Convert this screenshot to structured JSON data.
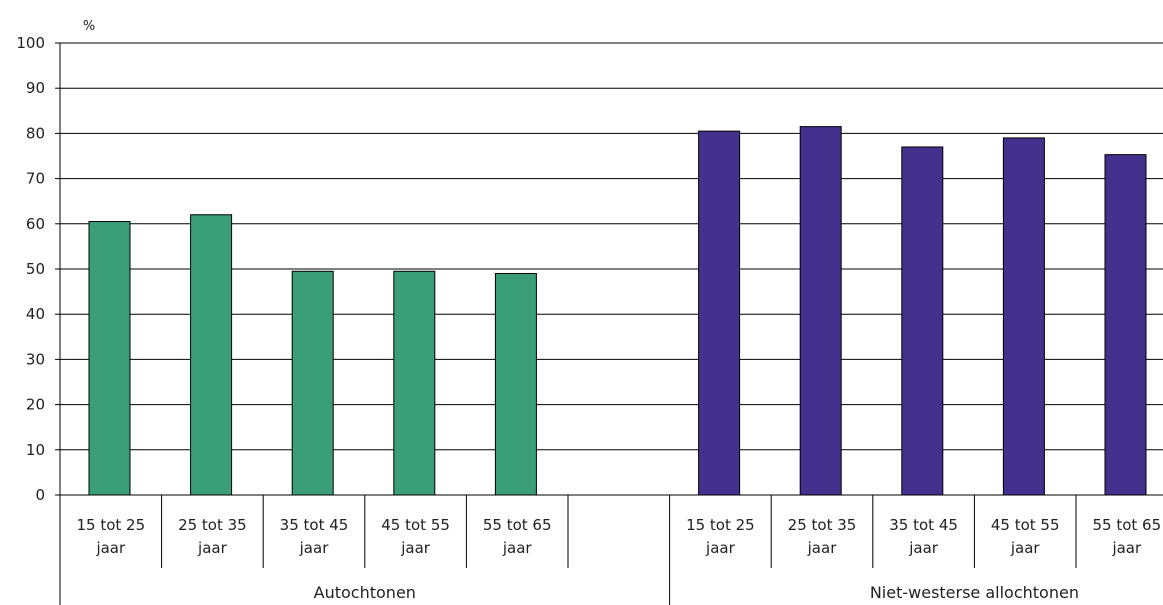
{
  "chart_data": {
    "type": "bar",
    "unit_label": "%",
    "ylim": [
      0,
      100
    ],
    "yticks": [
      "0",
      "10",
      "20",
      "30",
      "40",
      "50",
      "60",
      "70",
      "80",
      "90",
      "100"
    ],
    "grid": true,
    "groups": [
      {
        "name": "Autochtonen",
        "color": "#3a9f78",
        "categories": [
          [
            "15 tot 25",
            "jaar"
          ],
          [
            "25 tot 35",
            "jaar"
          ],
          [
            "35 tot 45",
            "jaar"
          ],
          [
            "45 tot 55",
            "jaar"
          ],
          [
            "55 tot 65",
            "jaar"
          ]
        ],
        "values": [
          60.5,
          62,
          49.5,
          49.5,
          49
        ]
      },
      {
        "name": "Niet-westerse allochtonen",
        "color": "#44318e",
        "categories": [
          [
            "15 tot 25",
            "jaar"
          ],
          [
            "25 tot 35",
            "jaar"
          ],
          [
            "35 tot 45",
            "jaar"
          ],
          [
            "45 tot 55",
            "jaar"
          ],
          [
            "55 tot 65",
            "jaar"
          ]
        ],
        "values": [
          80.5,
          81.5,
          77,
          79,
          75.3
        ]
      }
    ]
  }
}
